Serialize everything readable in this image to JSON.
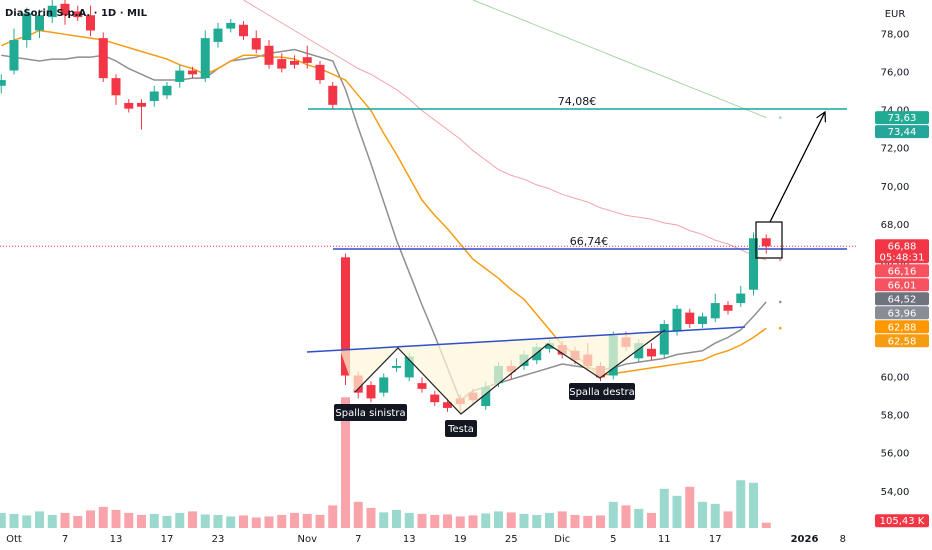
{
  "chart_data": {
    "type": "candlestick",
    "title": "DiaSorin S.p.A. · 1D · MIL",
    "currency": "EUR",
    "categories": [
      null,
      "Ott",
      null,
      null,
      null,
      "7",
      null,
      null,
      null,
      "13",
      null,
      null,
      null,
      "17",
      null,
      null,
      null,
      "23",
      null,
      null,
      null,
      null,
      null,
      null,
      "Nov",
      null,
      null,
      null,
      "7",
      null,
      null,
      null,
      "13",
      null,
      null,
      null,
      "19",
      null,
      null,
      null,
      "25",
      null,
      null,
      null,
      "Dic",
      null,
      null,
      null,
      "5",
      null,
      null,
      null,
      "11",
      null,
      null,
      null,
      "17",
      null,
      null,
      null,
      null,
      null,
      null,
      "2026",
      null,
      null,
      "8",
      null
    ],
    "open": [
      75.3,
      76.1,
      77.7,
      78.2,
      78.9,
      79.6,
      79.2,
      79.0,
      77.8,
      75.7,
      74.4,
      74.4,
      74.5,
      74.8,
      75.5,
      76.1,
      75.7,
      77.6,
      78.3,
      78.5,
      77.8,
      77.4,
      76.7,
      76.6,
      76.8,
      76.4,
      75.3,
      66.3,
      60.1,
      59.6,
      59.2,
      60.5,
      60.0,
      59.7,
      59.1,
      58.7,
      58.9,
      59.2,
      58.5,
      59.7,
      60.6,
      60.6,
      60.9,
      61.5,
      61.7,
      61.4,
      61.2,
      60.6,
      60.1,
      62.1,
      61.0,
      61.5,
      61.2,
      62.4,
      63.4,
      62.8,
      63.1,
      63.8,
      63.9,
      64.6,
      67.3,
      null,
      null,
      null,
      null,
      null,
      null,
      null
    ],
    "high": [
      75.9,
      78.3,
      79.4,
      79.3,
      80.0,
      80.2,
      79.5,
      79.5,
      78.1,
      75.9,
      74.6,
      74.6,
      75.3,
      75.5,
      76.4,
      76.3,
      78.2,
      78.6,
      78.8,
      78.7,
      78.2,
      77.7,
      77.0,
      76.9,
      77.4,
      76.6,
      75.5,
      66.5,
      60.3,
      59.8,
      60.2,
      61.0,
      61.3,
      60.0,
      59.3,
      58.9,
      59.1,
      59.4,
      59.8,
      60.8,
      60.9,
      61.4,
      61.8,
      62.0,
      61.9,
      61.6,
      61.8,
      60.8,
      62.4,
      62.4,
      62.0,
      61.8,
      63.0,
      63.8,
      63.6,
      63.4,
      64.4,
      64.0,
      64.8,
      67.6,
      67.5,
      null,
      null,
      null,
      null,
      null,
      null,
      null
    ],
    "low": [
      74.9,
      75.9,
      77.3,
      77.8,
      78.6,
      78.5,
      78.7,
      77.9,
      75.5,
      74.3,
      73.9,
      73.0,
      74.2,
      74.6,
      75.2,
      75.7,
      75.5,
      77.3,
      78.1,
      77.7,
      77.0,
      76.2,
      76.0,
      76.2,
      76.2,
      75.4,
      74.1,
      59.6,
      58.9,
      58.7,
      59.0,
      60.3,
      59.8,
      59.2,
      58.5,
      58.2,
      58.2,
      58.6,
      58.3,
      59.5,
      59.9,
      60.4,
      60.7,
      61.3,
      61.0,
      60.7,
      60.4,
      59.8,
      59.9,
      61.4,
      60.8,
      60.9,
      61.0,
      62.2,
      62.6,
      62.6,
      62.9,
      63.3,
      63.7,
      64.3,
      66.5,
      null,
      null,
      null,
      null,
      null,
      null,
      null
    ],
    "close": [
      75.6,
      77.7,
      79.1,
      79.0,
      79.5,
      79.0,
      78.9,
      78.2,
      75.7,
      74.8,
      74.1,
      74.2,
      75.0,
      75.3,
      76.1,
      75.9,
      77.8,
      78.3,
      78.6,
      77.9,
      77.2,
      76.4,
      76.2,
      76.4,
      76.5,
      75.6,
      74.3,
      60.1,
      59.2,
      58.9,
      60.0,
      60.6,
      61.1,
      59.4,
      58.7,
      58.4,
      58.6,
      58.8,
      59.5,
      60.6,
      60.3,
      61.2,
      61.6,
      61.8,
      61.2,
      60.9,
      60.6,
      60.0,
      62.2,
      61.6,
      61.8,
      61.1,
      62.8,
      63.6,
      62.8,
      63.2,
      63.9,
      63.5,
      64.4,
      67.3,
      66.88,
      null,
      null,
      null,
      null,
      null,
      null,
      null
    ],
    "up_color": "#22ab94",
    "down_color": "#f23645",
    "last_price_label": "66,88",
    "countdown": "05:48:31",
    "ylim": [
      52.1,
      79.8
    ],
    "yticks": [
      {
        "value": 54,
        "label": "54,00"
      },
      {
        "value": 56,
        "label": "56,00"
      },
      {
        "value": 58,
        "label": "58,00"
      },
      {
        "value": 60,
        "label": "60,00"
      },
      {
        "value": 62,
        "label": "62,00"
      },
      {
        "value": 64,
        "label": "64,00"
      },
      {
        "value": 66,
        "label": "66,00"
      },
      {
        "value": 68,
        "label": "68,00"
      },
      {
        "value": 70,
        "label": "70,00"
      },
      {
        "value": 72,
        "label": "72,00"
      },
      {
        "value": 74,
        "label": "74,00"
      },
      {
        "value": 76,
        "label": "76,00"
      },
      {
        "value": 78,
        "label": "78,00"
      }
    ],
    "grid": false,
    "series": [
      {
        "color": "#8f8f8f",
        "values": [
          76.9,
          76.8,
          76.7,
          76.6,
          76.7,
          76.7,
          76.8,
          76.8,
          76.9,
          76.6,
          76.2,
          75.9,
          75.6,
          75.6,
          75.6,
          75.7,
          75.7,
          76.2,
          76.6,
          76.7,
          76.8,
          77.0,
          77.1,
          77.2,
          77.0,
          76.8,
          76.6,
          75.1,
          73.1,
          71.2,
          69.2,
          67.2,
          65.5,
          63.8,
          62.2,
          60.5,
          58.8,
          59.3,
          59.5,
          59.7,
          59.9,
          60.1,
          60.3,
          60.5,
          60.7,
          60.6,
          60.5,
          60.4,
          60.5,
          60.7,
          60.8,
          60.9,
          61.0,
          61.2,
          61.3,
          61.4,
          61.8,
          62.1,
          62.5,
          63.2,
          63.96,
          null,
          null,
          null,
          null,
          null,
          null,
          null
        ]
      },
      {
        "color": "#f59d12",
        "values": [
          77.4,
          77.7,
          77.9,
          78.2,
          78.1,
          78.0,
          77.9,
          77.8,
          77.7,
          77.5,
          77.3,
          77.1,
          76.9,
          76.7,
          76.4,
          76.2,
          75.9,
          76.2,
          76.6,
          76.9,
          76.9,
          76.8,
          76.8,
          76.7,
          76.4,
          76.2,
          75.9,
          75.6,
          74.8,
          74.0,
          72.8,
          71.7,
          70.5,
          69.3,
          68.5,
          67.8,
          67.0,
          66.2,
          65.7,
          65.2,
          64.6,
          64.1,
          63.3,
          62.5,
          61.7,
          61.2,
          60.6,
          60.1,
          60.2,
          60.3,
          60.4,
          60.5,
          60.6,
          60.7,
          60.8,
          60.9,
          61.2,
          61.4,
          61.7,
          62.1,
          62.58,
          null,
          null,
          null,
          null,
          null,
          null,
          null
        ]
      },
      {
        "color": "#f4a3a8",
        "values": [
          null,
          null,
          null,
          null,
          null,
          null,
          null,
          null,
          null,
          null,
          null,
          null,
          null,
          null,
          null,
          null,
          null,
          null,
          null,
          79.8,
          79.4,
          79.0,
          78.6,
          78.2,
          77.8,
          77.4,
          77.0,
          76.6,
          76.2,
          75.9,
          75.5,
          75.1,
          74.6,
          74.0,
          73.5,
          73.0,
          72.5,
          71.9,
          71.4,
          70.9,
          70.6,
          70.4,
          70.1,
          69.9,
          69.6,
          69.4,
          69.2,
          68.9,
          68.7,
          68.5,
          68.4,
          68.3,
          68.1,
          68.0,
          67.7,
          67.5,
          67.2,
          67.0,
          66.7,
          66.4,
          66.16,
          null,
          null,
          null,
          null,
          null,
          null,
          null
        ]
      },
      {
        "color": "#a8d5a8",
        "values": [
          null,
          null,
          null,
          null,
          null,
          null,
          null,
          null,
          null,
          null,
          null,
          null,
          null,
          null,
          null,
          null,
          null,
          null,
          null,
          null,
          null,
          null,
          null,
          null,
          null,
          null,
          null,
          null,
          null,
          null,
          null,
          null,
          null,
          null,
          null,
          null,
          null,
          79.8,
          79.53,
          79.26,
          79.0,
          78.73,
          78.46,
          78.19,
          77.93,
          77.66,
          77.39,
          77.12,
          76.85,
          76.58,
          76.31,
          76.05,
          75.78,
          75.51,
          75.24,
          74.97,
          74.71,
          74.44,
          74.17,
          73.9,
          73.63,
          null,
          null,
          null,
          null,
          null,
          null,
          null
        ]
      }
    ],
    "volume": {
      "ylim": [
        0,
        10500
      ],
      "up_color": "rgba(34,171,148,0.45)",
      "down_color": "rgba(242,54,69,0.45)",
      "last_label": "105,43 K",
      "values": [
        300,
        280,
        250,
        330,
        260,
        300,
        240,
        350,
        420,
        360,
        300,
        260,
        280,
        240,
        300,
        330,
        270,
        260,
        230,
        250,
        210,
        230,
        260,
        300,
        280,
        260,
        450,
        2600,
        520,
        400,
        310,
        360,
        300,
        280,
        260,
        270,
        230,
        250,
        290,
        330,
        310,
        280,
        260,
        300,
        330,
        260,
        240,
        250,
        520,
        450,
        380,
        300,
        780,
        640,
        820,
        520,
        480,
        330,
        950,
        900,
        105.43,
        null,
        null,
        null,
        null,
        null,
        null,
        null
      ]
    },
    "levels": [
      {
        "value": 74.08,
        "label": "74,08€",
        "color": "#10a7a0"
      },
      {
        "value": 66.74,
        "label": "66,74€",
        "color": "#2f4fc9"
      }
    ],
    "price_labels": [
      {
        "value": 73.63,
        "label": "73,63",
        "color": "#22ab94"
      },
      {
        "value": 73.44,
        "label": "73,44",
        "color": "#26a69a"
      },
      {
        "value": 66.16,
        "label": "66,16",
        "color": "#f7525f"
      },
      {
        "value": 66.01,
        "label": "66,01",
        "color": "#f7525f"
      },
      {
        "value": 64.52,
        "label": "64,52",
        "color": "#6f737e"
      },
      {
        "value": 63.96,
        "label": "63,96",
        "color": "#8a8d96"
      },
      {
        "value": 62.88,
        "label": "62,88",
        "color": "#ff9800"
      },
      {
        "value": 62.58,
        "label": "62,58",
        "color": "#f59d12"
      }
    ],
    "annotations": [
      "Spalla sinistra",
      "Testa",
      "Spalla destra"
    ]
  }
}
